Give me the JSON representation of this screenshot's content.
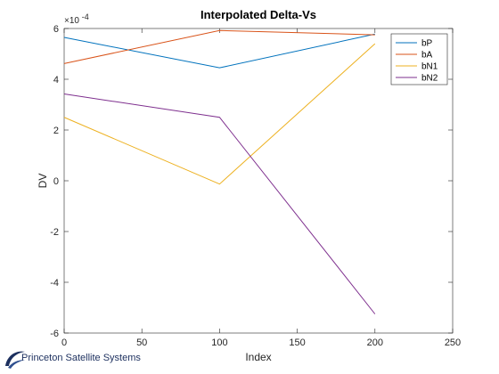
{
  "chart_data": {
    "type": "line",
    "title": "Interpolated Delta-Vs",
    "xlabel": "Index",
    "ylabel": "DV",
    "y_exponent_label": "×10",
    "y_exponent": "-4",
    "xlim": [
      0,
      250
    ],
    "ylim": [
      -6,
      6
    ],
    "x_ticks": [
      0,
      50,
      100,
      150,
      200,
      250
    ],
    "y_ticks": [
      -6,
      -4,
      -2,
      0,
      2,
      4,
      6
    ],
    "grid": false,
    "legend_position": "top-right",
    "x": [
      0,
      100,
      200
    ],
    "series": [
      {
        "name": "bP",
        "color": "#0072BD",
        "values": [
          5.65,
          4.45,
          5.78
        ]
      },
      {
        "name": "bA",
        "color": "#D95319",
        "values": [
          4.62,
          5.92,
          5.75
        ]
      },
      {
        "name": "bN1",
        "color": "#EDB120",
        "values": [
          2.5,
          -0.13,
          5.4
        ]
      },
      {
        "name": "bN2",
        "color": "#7E2F8E",
        "values": [
          3.42,
          2.5,
          -5.25
        ]
      }
    ]
  },
  "footer": {
    "logo_text": "Princeton Satellite Systems",
    "logo_icon": "swoosh-logo-icon"
  }
}
